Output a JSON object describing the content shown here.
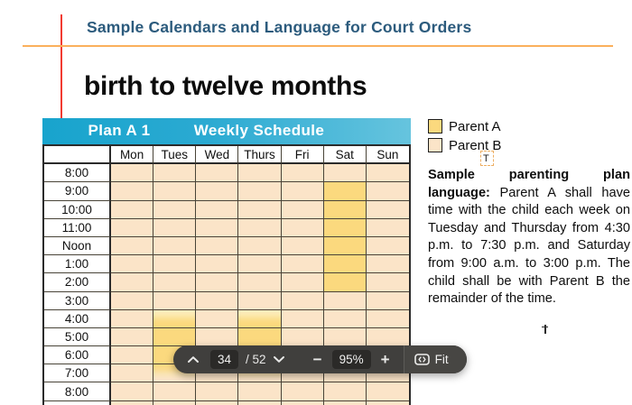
{
  "header": {
    "title": "Sample Calendars and Language for Court Orders"
  },
  "document": {
    "section_title": "birth to twelve months"
  },
  "calendar": {
    "plan_label": "Plan A 1",
    "schedule_label": "Weekly Schedule",
    "days": [
      "Mon",
      "Tues",
      "Wed",
      "Thurs",
      "Fri",
      "Sat",
      "Sun"
    ],
    "times": [
      "8:00",
      "9:00",
      "10:00",
      "11:00",
      "Noon",
      "1:00",
      "2:00",
      "3:00",
      "4:00",
      "5:00",
      "6:00",
      "7:00",
      "8:00",
      ""
    ],
    "highlights": {
      "Tues": {
        "4:00": "fade-in",
        "5:00": "full",
        "6:00": "full",
        "7:00": "fade-out"
      },
      "Thurs": {
        "4:00": "fade-in",
        "5:00": "full",
        "6:00": "full",
        "7:00": "fade-out"
      },
      "Sat": {
        "9:00": "full",
        "10:00": "full",
        "11:00": "full",
        "Noon": "full",
        "1:00": "full",
        "2:00": "full"
      }
    },
    "colors": {
      "parent_a": "#FBD97E",
      "parent_b": "#FBE4C8",
      "titlebar_left": "#18A4CD",
      "titlebar_right": "#66C4DE"
    }
  },
  "legend": {
    "items": [
      {
        "label": "Parent A",
        "color": "#FBD97E"
      },
      {
        "label": "Parent B",
        "color": "#FBE4C8"
      }
    ],
    "annotation_marker": "T"
  },
  "sample_text": {
    "bold_lead": "Sample parenting plan language:",
    "body": " Parent A shall have time with the child each week on Tuesday and Thursday from 4:30 p.m. to 7:30 p.m. and Saturday from 9:00 a.m. to 3:00 p.m. The child shall be with Parent B the remainder of the time."
  },
  "toolbar": {
    "page_number": "34",
    "page_total": "/ 52",
    "zoom_level": "95%",
    "minus_label": "−",
    "plus_label": "+",
    "fit_label": "Fit"
  }
}
